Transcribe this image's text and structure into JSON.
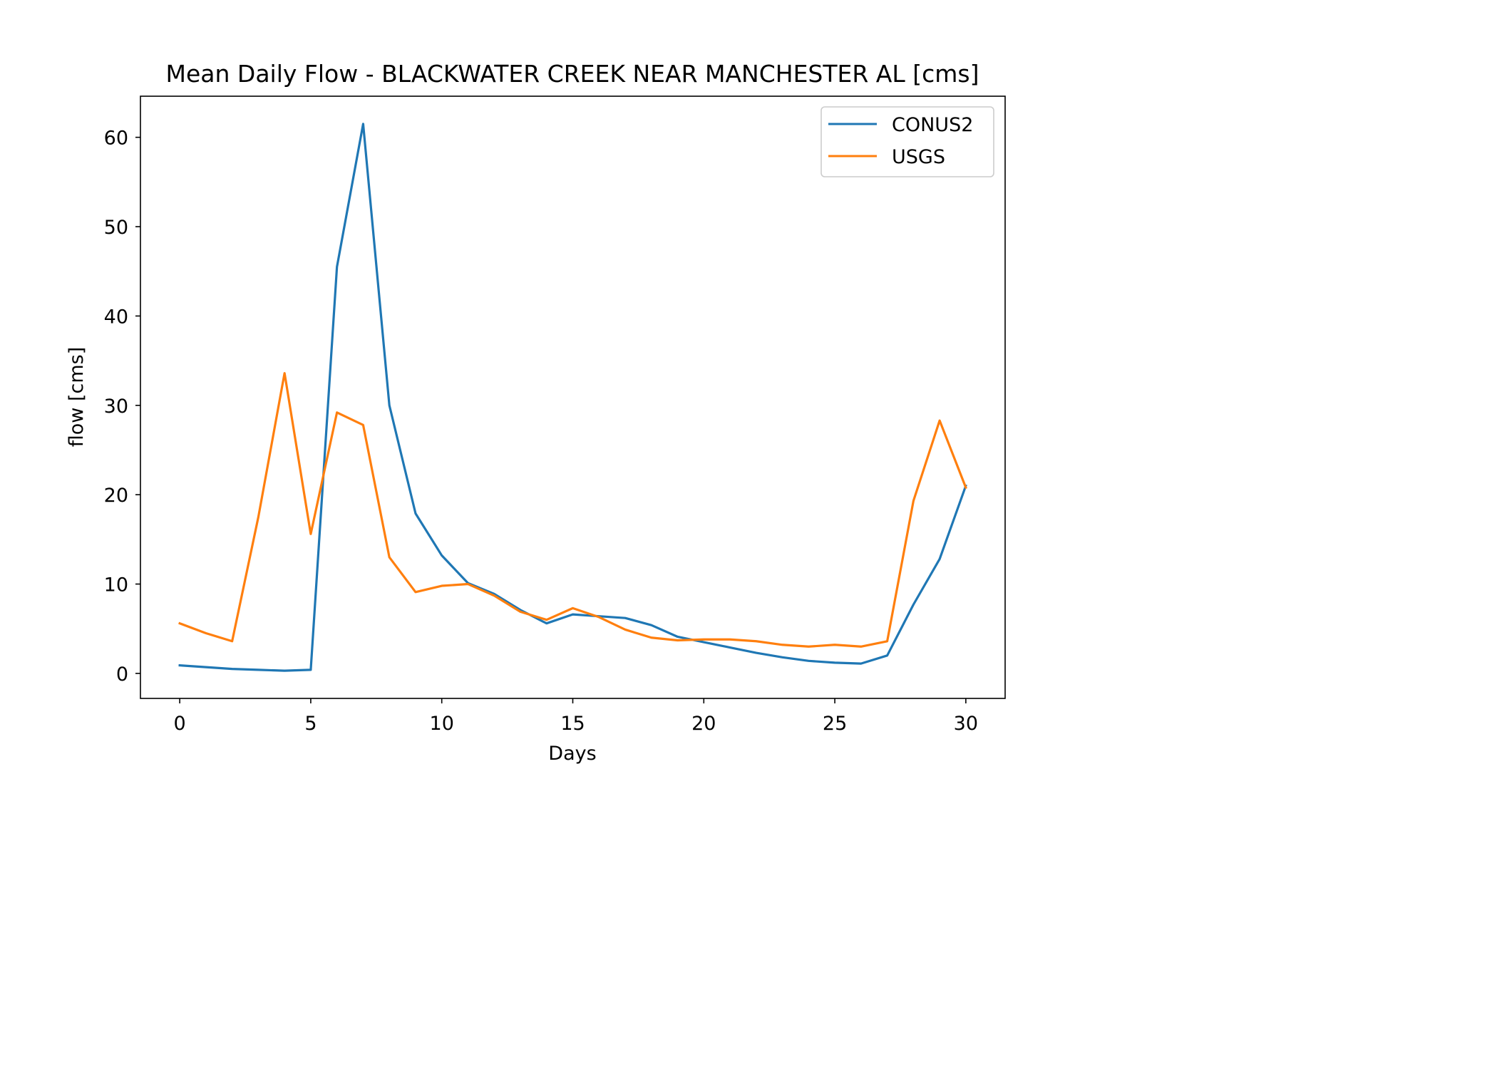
{
  "chart_data": {
    "type": "line",
    "title": "Mean Daily Flow - BLACKWATER CREEK NEAR MANCHESTER AL [cms]",
    "xlabel": "Days",
    "ylabel": "flow [cms]",
    "xlim": [
      -1.5,
      31.5
    ],
    "ylim": [
      -2.8,
      64.6
    ],
    "xticks": [
      0,
      5,
      10,
      15,
      20,
      25,
      30
    ],
    "yticks": [
      0,
      10,
      20,
      30,
      40,
      50,
      60
    ],
    "grid": false,
    "legend_position": "top-right",
    "x": [
      0,
      1,
      2,
      3,
      4,
      5,
      6,
      7,
      8,
      9,
      10,
      11,
      12,
      13,
      14,
      15,
      16,
      17,
      18,
      19,
      20,
      21,
      22,
      23,
      24,
      25,
      26,
      27,
      28,
      29,
      30
    ],
    "series": [
      {
        "name": "CONUS2",
        "color": "#1f77b4",
        "values": [
          0.9,
          0.7,
          0.5,
          0.4,
          0.3,
          0.4,
          45.5,
          61.5,
          30.0,
          17.9,
          13.2,
          10.1,
          8.9,
          7.1,
          5.6,
          6.6,
          6.4,
          6.2,
          5.4,
          4.1,
          3.5,
          2.9,
          2.3,
          1.8,
          1.4,
          1.2,
          1.1,
          2.0,
          7.7,
          12.8,
          21.0
        ]
      },
      {
        "name": "USGS",
        "color": "#ff7f0e",
        "values": [
          5.6,
          4.5,
          3.6,
          17.5,
          33.6,
          15.6,
          29.2,
          27.8,
          13.0,
          9.1,
          9.8,
          10.0,
          8.7,
          6.9,
          6.0,
          7.3,
          6.3,
          4.9,
          4.0,
          3.7,
          3.8,
          3.8,
          3.6,
          3.2,
          3.0,
          3.2,
          3.0,
          3.6,
          19.3,
          28.3,
          20.8
        ]
      }
    ]
  }
}
